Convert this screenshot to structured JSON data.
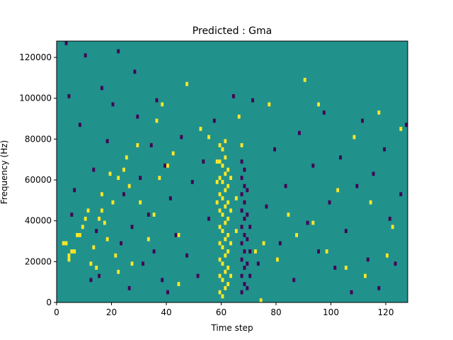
{
  "chart_data": {
    "type": "heatmap",
    "title": "Predicted : Gma",
    "xlabel": "Time step",
    "ylabel": "Frequency (Hz)",
    "xlim": [
      0,
      128
    ],
    "ylim": [
      0,
      128000
    ],
    "xticks": [
      0,
      20,
      40,
      60,
      80,
      100,
      120
    ],
    "yticks": [
      0,
      20000,
      40000,
      60000,
      80000,
      100000,
      120000
    ],
    "xtick_labels": [
      "0",
      "20",
      "40",
      "60",
      "80",
      "100",
      "120"
    ],
    "ytick_labels": [
      "0",
      "20000",
      "40000",
      "60000",
      "80000",
      "100000",
      "120000"
    ],
    "grid": false,
    "colormap": "viridis",
    "colors": {
      "background": "#21918c",
      "high": "#fde725",
      "low": "#440154"
    },
    "n_time_steps": 128,
    "n_freq_bins": 64,
    "freq_bin_hz": 2000,
    "high_cells": [
      [
        2,
        14
      ],
      [
        3,
        14
      ],
      [
        4,
        11
      ],
      [
        4,
        10
      ],
      [
        5,
        12
      ],
      [
        6,
        12
      ],
      [
        7,
        16
      ],
      [
        8,
        16
      ],
      [
        9,
        18
      ],
      [
        10,
        20
      ],
      [
        11,
        22
      ],
      [
        12,
        9
      ],
      [
        13,
        13
      ],
      [
        14,
        8
      ],
      [
        15,
        20
      ],
      [
        16,
        26
      ],
      [
        16,
        22
      ],
      [
        17,
        19
      ],
      [
        18,
        15
      ],
      [
        19,
        31
      ],
      [
        20,
        24
      ],
      [
        21,
        11
      ],
      [
        22,
        7
      ],
      [
        22,
        30
      ],
      [
        24,
        32
      ],
      [
        25,
        35
      ],
      [
        26,
        28
      ],
      [
        27,
        9
      ],
      [
        29,
        38
      ],
      [
        30,
        24
      ],
      [
        33,
        15
      ],
      [
        35,
        21
      ],
      [
        36,
        44
      ],
      [
        37,
        30
      ],
      [
        38,
        48
      ],
      [
        40,
        33
      ],
      [
        42,
        36
      ],
      [
        44,
        4
      ],
      [
        44,
        16
      ],
      [
        47,
        53
      ],
      [
        52,
        42
      ],
      [
        55,
        40
      ],
      [
        58,
        24
      ],
      [
        58,
        29
      ],
      [
        58,
        34
      ],
      [
        59,
        2
      ],
      [
        59,
        6
      ],
      [
        59,
        10
      ],
      [
        59,
        14
      ],
      [
        59,
        18
      ],
      [
        59,
        22
      ],
      [
        59,
        26
      ],
      [
        59,
        30
      ],
      [
        59,
        34
      ],
      [
        59,
        38
      ],
      [
        60,
        1
      ],
      [
        60,
        5
      ],
      [
        60,
        9
      ],
      [
        60,
        13
      ],
      [
        60,
        17
      ],
      [
        60,
        21
      ],
      [
        60,
        25
      ],
      [
        60,
        29
      ],
      [
        60,
        33
      ],
      [
        60,
        37
      ],
      [
        61,
        3
      ],
      [
        61,
        7
      ],
      [
        61,
        11
      ],
      [
        61,
        15
      ],
      [
        61,
        19
      ],
      [
        61,
        23
      ],
      [
        61,
        27
      ],
      [
        61,
        31
      ],
      [
        61,
        35
      ],
      [
        61,
        39
      ],
      [
        62,
        4
      ],
      [
        62,
        8
      ],
      [
        62,
        12
      ],
      [
        62,
        16
      ],
      [
        62,
        20
      ],
      [
        62,
        24
      ],
      [
        62,
        28
      ],
      [
        62,
        32
      ],
      [
        63,
        6
      ],
      [
        63,
        14
      ],
      [
        63,
        22
      ],
      [
        63,
        30
      ],
      [
        65,
        17
      ],
      [
        65,
        25
      ],
      [
        66,
        45
      ],
      [
        67,
        38
      ],
      [
        72,
        12
      ],
      [
        74,
        0
      ],
      [
        75,
        14
      ],
      [
        77,
        48
      ],
      [
        80,
        10
      ],
      [
        84,
        21
      ],
      [
        87,
        16
      ],
      [
        90,
        54
      ],
      [
        93,
        19
      ],
      [
        95,
        48
      ],
      [
        98,
        12
      ],
      [
        102,
        27
      ],
      [
        105,
        8
      ],
      [
        108,
        40
      ],
      [
        112,
        6
      ],
      [
        114,
        24
      ],
      [
        117,
        46
      ],
      [
        120,
        11
      ],
      [
        122,
        18
      ],
      [
        125,
        42
      ]
    ],
    "low_cells": [
      [
        3,
        63
      ],
      [
        4,
        50
      ],
      [
        5,
        21
      ],
      [
        6,
        27
      ],
      [
        8,
        43
      ],
      [
        10,
        60
      ],
      [
        12,
        5
      ],
      [
        13,
        32
      ],
      [
        14,
        17
      ],
      [
        15,
        6
      ],
      [
        16,
        52
      ],
      [
        18,
        39
      ],
      [
        20,
        48
      ],
      [
        22,
        61
      ],
      [
        23,
        14
      ],
      [
        24,
        26
      ],
      [
        26,
        3
      ],
      [
        27,
        18
      ],
      [
        28,
        56
      ],
      [
        29,
        45
      ],
      [
        30,
        30
      ],
      [
        31,
        9
      ],
      [
        33,
        21
      ],
      [
        34,
        38
      ],
      [
        35,
        12
      ],
      [
        36,
        49
      ],
      [
        38,
        5
      ],
      [
        39,
        33
      ],
      [
        40,
        2
      ],
      [
        41,
        25
      ],
      [
        43,
        16
      ],
      [
        45,
        40
      ],
      [
        47,
        11
      ],
      [
        49,
        29
      ],
      [
        51,
        6
      ],
      [
        53,
        34
      ],
      [
        55,
        20
      ],
      [
        57,
        44
      ],
      [
        64,
        50
      ],
      [
        67,
        2
      ],
      [
        67,
        6
      ],
      [
        67,
        10
      ],
      [
        67,
        14
      ],
      [
        67,
        18
      ],
      [
        67,
        22
      ],
      [
        67,
        26
      ],
      [
        67,
        30
      ],
      [
        67,
        34
      ],
      [
        68,
        4
      ],
      [
        68,
        8
      ],
      [
        68,
        12
      ],
      [
        68,
        16
      ],
      [
        68,
        20
      ],
      [
        68,
        24
      ],
      [
        68,
        28
      ],
      [
        68,
        32
      ],
      [
        69,
        3
      ],
      [
        69,
        9
      ],
      [
        69,
        15
      ],
      [
        69,
        21
      ],
      [
        69,
        27
      ],
      [
        70,
        6
      ],
      [
        70,
        12
      ],
      [
        70,
        18
      ],
      [
        71,
        49
      ],
      [
        73,
        9
      ],
      [
        76,
        23
      ],
      [
        79,
        37
      ],
      [
        81,
        14
      ],
      [
        83,
        28
      ],
      [
        86,
        5
      ],
      [
        88,
        41
      ],
      [
        91,
        19
      ],
      [
        93,
        33
      ],
      [
        95,
        12
      ],
      [
        97,
        46
      ],
      [
        99,
        24
      ],
      [
        101,
        8
      ],
      [
        103,
        35
      ],
      [
        105,
        17
      ],
      [
        107,
        2
      ],
      [
        109,
        28
      ],
      [
        111,
        44
      ],
      [
        113,
        10
      ],
      [
        115,
        31
      ],
      [
        117,
        3
      ],
      [
        119,
        37
      ],
      [
        121,
        20
      ],
      [
        123,
        9
      ],
      [
        125,
        26
      ],
      [
        127,
        43
      ]
    ]
  }
}
